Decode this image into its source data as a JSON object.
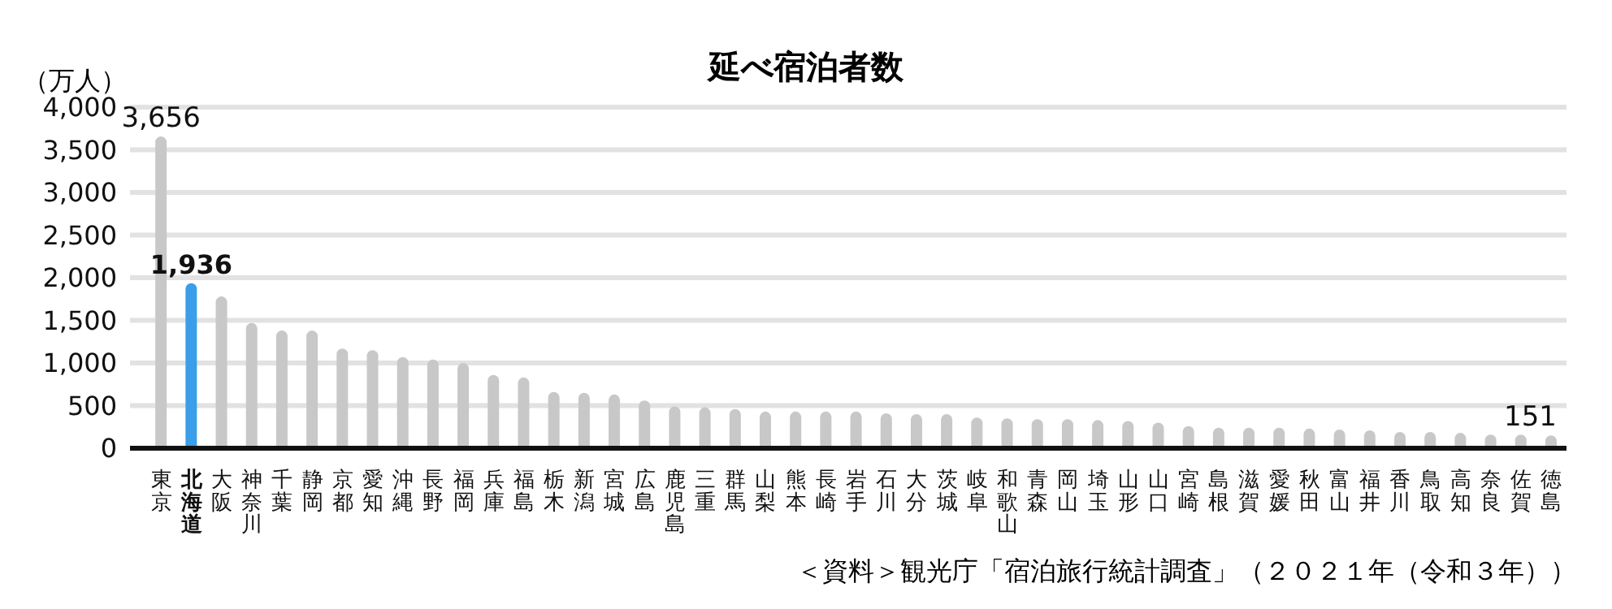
{
  "chart_data": {
    "type": "bar",
    "title": "延べ宿泊者数",
    "ylabel": "（万人）",
    "categories": [
      "東京",
      "北海道",
      "大阪",
      "神奈川",
      "千葉",
      "静岡",
      "京都",
      "愛知",
      "沖縄",
      "長野",
      "福岡",
      "兵庫",
      "福島",
      "栃木",
      "新潟",
      "宮城",
      "広島",
      "鹿児島",
      "三重",
      "群馬",
      "山梨",
      "熊本",
      "長崎",
      "岩手",
      "石川",
      "大分",
      "茨城",
      "岐阜",
      "和歌山",
      "青森",
      "岡山",
      "埼玉",
      "山形",
      "山口",
      "宮崎",
      "島根",
      "滋賀",
      "愛媛",
      "秋田",
      "富山",
      "福井",
      "香川",
      "鳥取",
      "高知",
      "奈良",
      "佐賀",
      "徳島"
    ],
    "values": [
      3656,
      1936,
      1780,
      1470,
      1380,
      1380,
      1170,
      1150,
      1070,
      1040,
      1000,
      860,
      830,
      660,
      650,
      630,
      560,
      490,
      480,
      460,
      430,
      430,
      430,
      430,
      410,
      400,
      400,
      360,
      350,
      340,
      340,
      330,
      320,
      300,
      260,
      240,
      240,
      240,
      230,
      220,
      210,
      190,
      190,
      180,
      160,
      160,
      151
    ],
    "colors": [
      "#c8c8c8",
      "#3a9ee8",
      "#c8c8c8",
      "#c8c8c8",
      "#c8c8c8",
      "#c8c8c8",
      "#c8c8c8",
      "#c8c8c8",
      "#c8c8c8",
      "#c8c8c8",
      "#c8c8c8",
      "#c8c8c8",
      "#c8c8c8",
      "#c8c8c8",
      "#c8c8c8",
      "#c8c8c8",
      "#c8c8c8",
      "#c8c8c8",
      "#c8c8c8",
      "#c8c8c8",
      "#c8c8c8",
      "#c8c8c8",
      "#c8c8c8",
      "#c8c8c8",
      "#c8c8c8",
      "#c8c8c8",
      "#c8c8c8",
      "#c8c8c8",
      "#c8c8c8",
      "#c8c8c8",
      "#c8c8c8",
      "#c8c8c8",
      "#c8c8c8",
      "#c8c8c8",
      "#c8c8c8",
      "#c8c8c8",
      "#c8c8c8",
      "#c8c8c8",
      "#c8c8c8",
      "#c8c8c8",
      "#c8c8c8",
      "#c8c8c8",
      "#c8c8c8",
      "#c8c8c8",
      "#c8c8c8",
      "#c8c8c8",
      "#c8c8c8"
    ],
    "value_labels": [
      "3,656",
      "1,936",
      null,
      null,
      null,
      null,
      null,
      null,
      null,
      null,
      null,
      null,
      null,
      null,
      null,
      null,
      null,
      null,
      null,
      null,
      null,
      null,
      null,
      null,
      null,
      null,
      null,
      null,
      null,
      null,
      null,
      null,
      null,
      null,
      null,
      null,
      null,
      null,
      null,
      null,
      null,
      null,
      null,
      null,
      null,
      null,
      "151"
    ],
    "ylim": [
      0,
      4000
    ],
    "yticks": [
      0,
      {
        "value": 500,
        "label": "500"
      },
      {
        "value": 1000,
        "label": "1,000"
      },
      {
        "value": 1500,
        "label": "1,500"
      },
      {
        "value": 2000,
        "label": "2,000"
      },
      {
        "value": 2500,
        "label": "2,500"
      },
      {
        "value": 3000,
        "label": "3,000"
      },
      {
        "value": 3500,
        "label": "3,500"
      },
      {
        "value": 4000,
        "label": "4,000"
      }
    ],
    "grid": "y",
    "annotations": [
      "＜資料＞観光庁「宿泊旅行統計調査」（２０２１年（令和３年））"
    ]
  }
}
